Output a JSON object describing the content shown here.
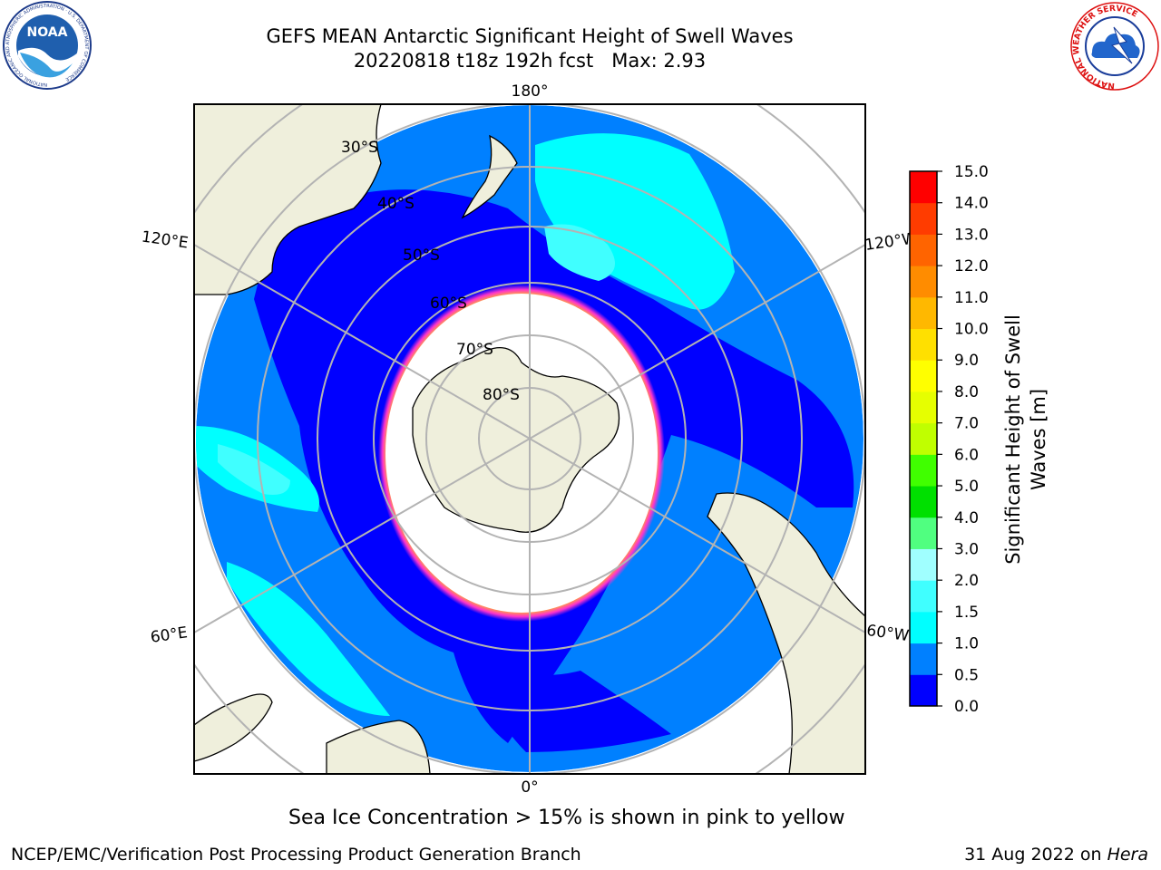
{
  "title": {
    "line1": "GEFS MEAN Antarctic Significant Height of Swell Waves",
    "line2": "20220818 t18z 192h fcst   Max: 2.93"
  },
  "map": {
    "projection": "south-polar-stereographic",
    "longitude_labels": [
      "180°",
      "120°E",
      "120°W",
      "60°E",
      "60°W",
      "0°"
    ],
    "latitude_labels": [
      "30°S",
      "40°S",
      "50°S",
      "60°S",
      "70°S",
      "80°S"
    ],
    "colors": {
      "land": "#efefdc",
      "ice_white": "#ffffff",
      "ice_edge": "#ff33cc",
      "grid": "#b3b3b3"
    }
  },
  "colorbar": {
    "label_line1": "Significant Height of Swell",
    "label_line2": "Waves [m]",
    "ticks": [
      "0.0",
      "0.5",
      "1.0",
      "1.5",
      "2.0",
      "3.0",
      "4.0",
      "5.0",
      "6.0",
      "7.0",
      "8.0",
      "9.0",
      "10.0",
      "11.0",
      "12.0",
      "13.0",
      "14.0",
      "15.0"
    ],
    "colors": [
      "#0000ff",
      "#0080ff",
      "#00ffff",
      "#40ffff",
      "#a0ffff",
      "#50ff80",
      "#00e000",
      "#40ff00",
      "#c0ff00",
      "#e6ff00",
      "#ffff00",
      "#ffe000",
      "#ffb800",
      "#ff8c00",
      "#ff6400",
      "#ff3c00",
      "#ff0000"
    ]
  },
  "caption": "Sea Ice Concentration > 15% is shown in pink to yellow",
  "footer": {
    "left": "NCEP/EMC/Verification Post Processing Product Generation Branch",
    "right_prefix": "31 Aug 2022 on ",
    "right_machine": "Hera"
  },
  "logos": {
    "noaa": "NOAA",
    "noaa_ring": "NATIONAL OCEANIC AND ATMOSPHERIC ADMINISTRATION · U.S. DEPARTMENT OF COMMERCE",
    "nws_ring": "NATIONAL WEATHER SERVICE"
  }
}
